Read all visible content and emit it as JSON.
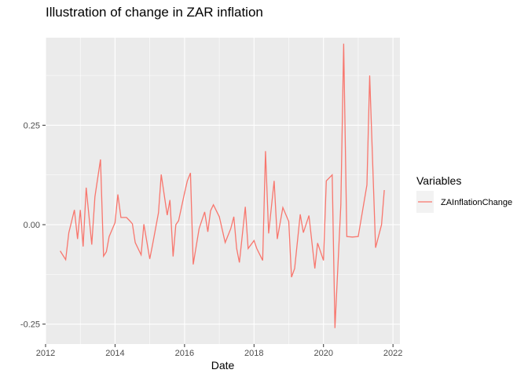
{
  "chart_data": {
    "type": "line",
    "title": "Illustration of change in ZAR inflation",
    "xlabel": "Date",
    "ylabel": "",
    "xlim": [
      2012.0,
      2022.2
    ],
    "ylim": [
      -0.3,
      0.47
    ],
    "x_ticks": [
      2012,
      2014,
      2016,
      2018,
      2020,
      2022
    ],
    "y_ticks": [
      -0.25,
      0.0,
      0.25
    ],
    "y_tick_labels": [
      "-0.25",
      "0.00",
      "0.25"
    ],
    "grid": true,
    "legend": {
      "title": "Variables",
      "position": "right",
      "entries": [
        "ZAInflationChange"
      ]
    },
    "series": [
      {
        "name": "ZAInflationChange",
        "color": "#F8766D",
        "x": [
          2012.42,
          2012.58,
          2012.67,
          2012.83,
          2012.92,
          2013.0,
          2013.08,
          2013.17,
          2013.33,
          2013.42,
          2013.58,
          2013.67,
          2013.75,
          2013.83,
          2014.0,
          2014.08,
          2014.17,
          2014.33,
          2014.42,
          2014.5,
          2014.58,
          2014.75,
          2014.83,
          2015.0,
          2015.08,
          2015.25,
          2015.33,
          2015.5,
          2015.58,
          2015.67,
          2015.75,
          2015.83,
          2016.0,
          2016.08,
          2016.17,
          2016.25,
          2016.42,
          2016.58,
          2016.67,
          2016.75,
          2016.83,
          2017.0,
          2017.17,
          2017.33,
          2017.42,
          2017.5,
          2017.58,
          2017.75,
          2017.83,
          2018.0,
          2018.08,
          2018.25,
          2018.33,
          2018.42,
          2018.58,
          2018.67,
          2018.83,
          2019.0,
          2019.08,
          2019.17,
          2019.33,
          2019.42,
          2019.58,
          2019.75,
          2019.83,
          2020.0,
          2020.08,
          2020.25,
          2020.33,
          2020.5,
          2020.58,
          2020.67,
          2020.83,
          2021.0,
          2021.25,
          2021.33,
          2021.5,
          2021.67,
          2021.75
        ],
        "values": [
          -0.066,
          -0.088,
          -0.02,
          0.037,
          -0.036,
          0.037,
          -0.055,
          0.093,
          -0.05,
          0.07,
          0.164,
          -0.079,
          -0.068,
          -0.03,
          0.005,
          0.076,
          0.018,
          0.018,
          0.01,
          0.002,
          -0.045,
          -0.076,
          0.001,
          -0.086,
          -0.05,
          0.03,
          0.126,
          0.024,
          0.062,
          -0.08,
          0.0,
          0.01,
          0.08,
          0.11,
          0.13,
          -0.1,
          -0.01,
          0.032,
          -0.018,
          0.035,
          0.05,
          0.02,
          -0.045,
          -0.01,
          0.02,
          -0.06,
          -0.095,
          0.045,
          -0.06,
          -0.04,
          -0.06,
          -0.09,
          0.185,
          -0.022,
          0.11,
          -0.036,
          0.043,
          0.008,
          -0.132,
          -0.11,
          0.026,
          -0.02,
          0.023,
          -0.11,
          -0.046,
          -0.09,
          0.11,
          0.125,
          -0.26,
          0.05,
          0.455,
          -0.03,
          -0.031,
          -0.03,
          0.1,
          0.375,
          -0.058,
          0.0,
          0.087
        ]
      }
    ]
  }
}
